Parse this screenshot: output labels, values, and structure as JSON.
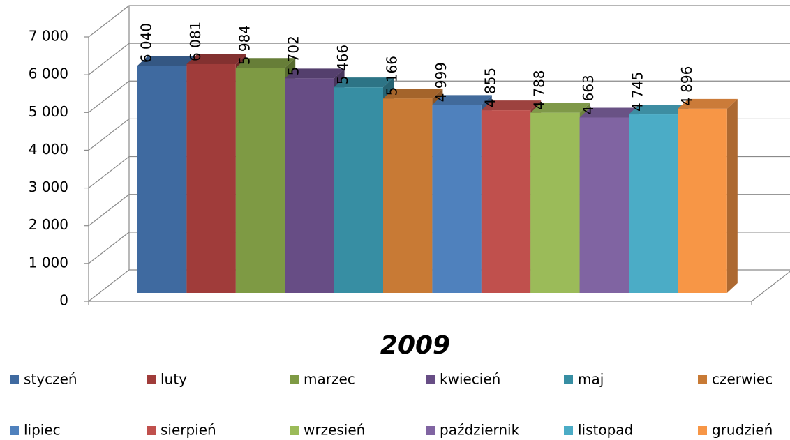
{
  "chart_data": {
    "type": "bar3d",
    "categories": [
      "2009"
    ],
    "series": [
      {
        "name": "styczeń",
        "color": "#3f6aa0",
        "values": [
          6040
        ],
        "value_labels": [
          "6 040"
        ]
      },
      {
        "name": "luty",
        "color": "#a03c3a",
        "values": [
          6081
        ],
        "value_labels": [
          "6 081"
        ]
      },
      {
        "name": "marzec",
        "color": "#7e9a44",
        "values": [
          5984
        ],
        "value_labels": [
          "5 984"
        ]
      },
      {
        "name": "kwiecień",
        "color": "#674d85",
        "values": [
          5702
        ],
        "value_labels": [
          "5 702"
        ]
      },
      {
        "name": "maj",
        "color": "#378ea3",
        "values": [
          5466
        ],
        "value_labels": [
          "5 466"
        ]
      },
      {
        "name": "czerwiec",
        "color": "#c87a35",
        "values": [
          5166
        ],
        "value_labels": [
          "5 166"
        ]
      },
      {
        "name": "lipiec",
        "color": "#4f81bd",
        "values": [
          4999
        ],
        "value_labels": [
          "4 999"
        ]
      },
      {
        "name": "sierpień",
        "color": "#c0504d",
        "values": [
          4855
        ],
        "value_labels": [
          "4 855"
        ]
      },
      {
        "name": "wrzesień",
        "color": "#9bbb59",
        "values": [
          4788
        ],
        "value_labels": [
          "4 788"
        ]
      },
      {
        "name": "październik",
        "color": "#8064a2",
        "values": [
          4663
        ],
        "value_labels": [
          "4 663"
        ]
      },
      {
        "name": "listopad",
        "color": "#4bacc6",
        "values": [
          4745
        ],
        "value_labels": [
          "4 745"
        ]
      },
      {
        "name": "grudzień",
        "color": "#f79646",
        "values": [
          4896
        ],
        "value_labels": [
          "4 896"
        ]
      }
    ],
    "ylim": [
      0,
      7000
    ],
    "yticks": [
      {
        "value": 0,
        "label": "0"
      },
      {
        "value": 1000,
        "label": "1 000"
      },
      {
        "value": 2000,
        "label": "2 000"
      },
      {
        "value": 3000,
        "label": "3 000"
      },
      {
        "value": 4000,
        "label": "4 000"
      },
      {
        "value": 5000,
        "label": "5 000"
      },
      {
        "value": 6000,
        "label": "6 000"
      },
      {
        "value": 7000,
        "label": "7 000"
      }
    ],
    "grid": true,
    "legend": "bottom"
  }
}
